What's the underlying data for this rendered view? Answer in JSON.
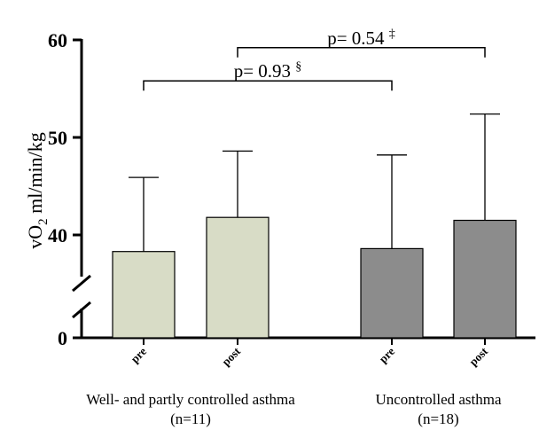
{
  "chart_data": {
    "type": "bar",
    "ylabel_main": "vO",
    "ylabel_sub": "2",
    "ylabel_unit": " ml/min/kg",
    "ylim": [
      0,
      60
    ],
    "axis_break": [
      0,
      35
    ],
    "yticks": [
      {
        "value": 0,
        "label": "0"
      },
      {
        "value": 40,
        "label": "40"
      },
      {
        "value": 50,
        "label": "50"
      },
      {
        "value": 60,
        "label": "60"
      }
    ],
    "categories": [
      "pre",
      "post",
      "pre",
      "post"
    ],
    "values": [
      38.3,
      41.8,
      38.6,
      41.5
    ],
    "error_upper": [
      45.9,
      48.6,
      48.2,
      52.4
    ],
    "colors": [
      "#d8dcc6",
      "#d8dcc6",
      "#8c8c8c",
      "#8c8c8c"
    ],
    "groups": [
      {
        "line1": "Well- and partly controlled asthma",
        "line2": "(n=11)",
        "bars": [
          0,
          1
        ]
      },
      {
        "line1": "Uncontrolled asthma",
        "line2": "(n=18)",
        "bars": [
          2,
          3
        ]
      }
    ],
    "annotations": [
      {
        "text": "p= 0.93 ",
        "symbol": "§",
        "from_bar": 0,
        "to_bar": 2,
        "level": 55.8
      },
      {
        "text": "p= 0.54 ",
        "symbol": "‡",
        "from_bar": 1,
        "to_bar": 3,
        "level": 59.2
      }
    ],
    "grid": false,
    "legend": "none"
  }
}
